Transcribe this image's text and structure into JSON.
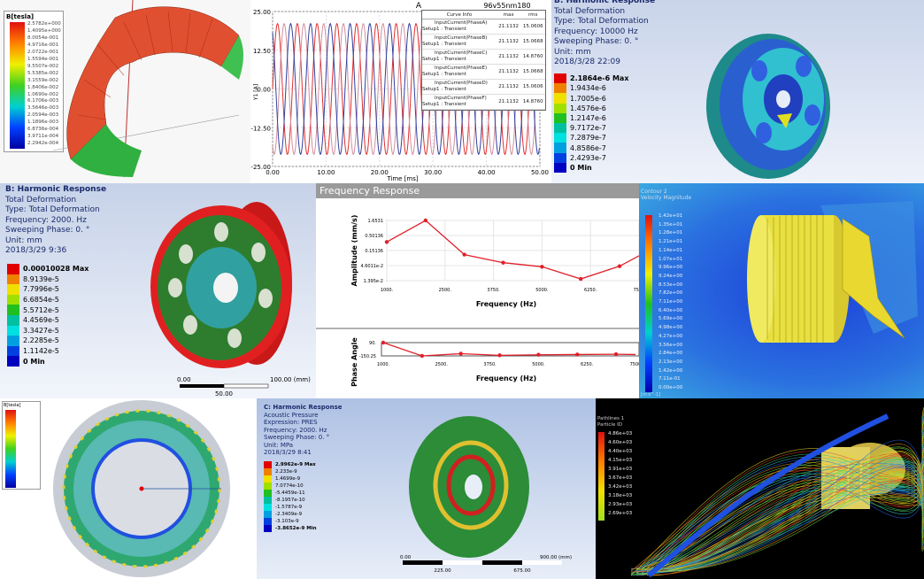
{
  "p1": {
    "legend_title": "B[tesla]",
    "values": [
      "2.5782e+000",
      "1.4095e+000",
      "8.0054e-001",
      "4.9716e-001",
      "2.0722e-001",
      "1.5594e-001",
      "9.5507e-002",
      "5.5385e-002",
      "3.1559e-002",
      "1.8406e-002",
      "1.0690e-002",
      "6.1706e-003",
      "3.5646e-003",
      "2.0594e-003",
      "1.1896e-003",
      "6.8736e-004",
      "3.9711e-004",
      "2.2942e-004"
    ]
  },
  "p2": {
    "title": "A",
    "project": "96v55nm180",
    "ylabel": "Y1 [A]",
    "xlabel": "Time [ms]",
    "yticks": [
      "25.00",
      "12.50",
      "0.00",
      "-12.50",
      "-25.00"
    ],
    "xticks": [
      "0.00",
      "10.00",
      "20.00",
      "30.00",
      "40.00",
      "50.00"
    ],
    "legend_headers": [
      "Curve Info",
      "max",
      "rms"
    ],
    "curves": [
      {
        "name": "InputCurrent(PhaseA)",
        "setup": "Setup1 : Transient",
        "max": "21.1132",
        "rms": "15.0606",
        "color": "#e03030"
      },
      {
        "name": "InputCurrent(PhaseB)",
        "setup": "Setup1 : Transient",
        "max": "21.1132",
        "rms": "15.0668",
        "color": "#c08090"
      },
      {
        "name": "InputCurrent(PhaseC)",
        "setup": "Setup1 : Transient",
        "max": "21.1132",
        "rms": "14.8760",
        "color": "#3040a0"
      },
      {
        "name": "InputCurrent(PhaseE)",
        "setup": "Setup1 : Transient",
        "max": "21.1132",
        "rms": "15.0668",
        "color": "#e03030"
      },
      {
        "name": "InputCurrent(PhaseD)",
        "setup": "Setup1 : Transient",
        "max": "21.1132",
        "rms": "15.0606",
        "color": "#808090"
      },
      {
        "name": "InputCurrent(PhaseF)",
        "setup": "Setup1 : Transient",
        "max": "21.1132",
        "rms": "14.8760",
        "color": "#3040a0"
      }
    ]
  },
  "p3": {
    "lines": [
      "B: Harmonic Response",
      "Total Deformation",
      "Type: Total Deformation",
      "Frequency: 10000 Hz",
      "Sweeping Phase: 0. °",
      "Unit: mm",
      "2018/3/28 22:09"
    ],
    "values": [
      "2.1864e-6 Max",
      "1.9434e-6",
      "1.7005e-6",
      "1.4576e-6",
      "1.2147e-6",
      "9.7172e-7",
      "7.2879e-7",
      "4.8586e-7",
      "2.4293e-7",
      "0 Min"
    ]
  },
  "p4": {
    "lines": [
      "B: Harmonic Response",
      "Total Deformation",
      "Type: Total Deformation",
      "Frequency: 2000. Hz",
      "Sweeping Phase: 0. °",
      "Unit: mm",
      "2018/3/29 9:36"
    ],
    "values": [
      "0.00010028 Max",
      "8.9139e-5",
      "7.7996e-5",
      "6.6854e-5",
      "5.5712e-5",
      "4.4569e-5",
      "3.3427e-5",
      "2.2285e-5",
      "1.1142e-5",
      "0 Min"
    ],
    "scale": {
      "left": "0.00",
      "right": "100.00 (mm)",
      "mid": "50.00"
    }
  },
  "chart_data": [
    {
      "type": "line",
      "title": "A",
      "xlabel": "Time [ms]",
      "ylabel": "Y1 [A]",
      "xlim": [
        0,
        50
      ],
      "ylim": [
        -25,
        25
      ],
      "series_desc": "six sinusoidal phase currents, amplitude 21.1132 A, period ~3.7 ms",
      "series": [
        {
          "name": "InputCurrent(PhaseA)",
          "amplitude": 21.1132,
          "phase_deg": 0
        },
        {
          "name": "InputCurrent(PhaseB)",
          "amplitude": 21.1132,
          "phase_deg": -120
        },
        {
          "name": "InputCurrent(PhaseC)",
          "amplitude": 21.1132,
          "phase_deg": 120
        }
      ],
      "period_ms": 3.7
    },
    {
      "type": "line",
      "title": "Frequency Response",
      "xlabel": "Frequency (Hz)",
      "ylabel": "Amplitude (mm/s)",
      "yscale": "log",
      "xticks": [
        "1000.",
        "2500.",
        "3750.",
        "5000.",
        "6250.",
        "7500"
      ],
      "yticks": [
        "1.6531",
        "0.50136",
        "0.15136",
        "4.6011e-2",
        "1.395e-2"
      ],
      "x": [
        1000,
        2000,
        3000,
        4000,
        5000,
        6000,
        7000,
        7500
      ],
      "values": [
        0.3,
        1.6531,
        0.11,
        0.058,
        0.042,
        0.016,
        0.044,
        0.1
      ],
      "xlim": [
        1000,
        7500
      ],
      "ylim": [
        0.01395,
        1.6531
      ],
      "color": "#e0202a"
    },
    {
      "type": "line",
      "xlabel": "Frequency (Hz)",
      "ylabel": "Phase Angle",
      "xticks": [
        "1000.",
        "2500.",
        "3750.",
        "5000.",
        "6250.",
        "7500"
      ],
      "yticks": [
        "90.",
        "-150.25"
      ],
      "x": [
        1000,
        2000,
        3000,
        4000,
        5000,
        6000,
        7000,
        7500
      ],
      "values": [
        90,
        -150,
        -110,
        -140,
        -130,
        -125,
        -120,
        -125
      ],
      "xlim": [
        1000,
        7500
      ],
      "ylim": [
        -150.25,
        90
      ],
      "color": "#e0202a"
    }
  ],
  "p5": {
    "header": "Frequency Response"
  },
  "p6": {
    "title": "Contour 2",
    "subtitle": "Velocity Magnitude",
    "values": [
      "1.42e+01",
      "1.35e+01",
      "1.28e+01",
      "1.21e+01",
      "1.14e+01",
      "1.07e+01",
      "9.96e+00",
      "9.24e+00",
      "8.53e+00",
      "7.82e+00",
      "7.11e+00",
      "6.40e+00",
      "5.69e+00",
      "4.98e+00",
      "4.27e+00",
      "3.56e+00",
      "2.84e+00",
      "2.13e+00",
      "1.42e+00",
      "7.11e-01",
      "0.00e+00"
    ],
    "unit": "[m s^-1]"
  },
  "p7": {
    "legend_title": "B[tesla]"
  },
  "p8": {
    "lines": [
      "C: Harmonic Response",
      "Acoustic Pressure",
      "Expression: PRES",
      "Frequency: 2000. Hz",
      "Sweeping Phase: 0. °",
      "Unit: MPa",
      "2018/3/29 8:41"
    ],
    "values": [
      "2.9962e-9 Max",
      "2.233e-9",
      "1.4699e-9",
      "7.0774e-10",
      "-5.4459e-11",
      "-8.1957e-10",
      "-1.5787e-9",
      "-2.3409e-9",
      "-3.103e-9",
      "-3.8652e-9 Min"
    ],
    "scale": {
      "left": "0.00",
      "right": "900.00 (mm)",
      "a": "225.00",
      "b": "675.00"
    }
  },
  "p9": {
    "title": "Pathlines 1",
    "subtitle": "Particle ID",
    "values": [
      "4.86e+03",
      "4.60e+03",
      "4.40e+03",
      "4.15e+03",
      "3.91e+03",
      "3.67e+03",
      "3.42e+03",
      "3.18e+03",
      "2.93e+03",
      "2.69e+03"
    ]
  },
  "colors": {
    "red": "#e0202a",
    "blue": "#3040a0"
  }
}
